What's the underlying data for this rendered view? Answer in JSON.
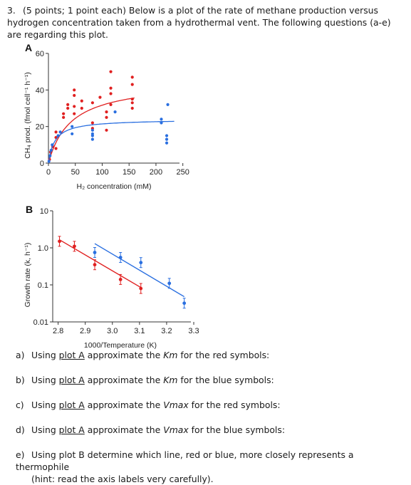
{
  "intro": {
    "number": "3.",
    "text": "(5 points; 1 point each) Below is a plot of the rate of methane production versus hydrogen concentration taken from a hydrothermal vent. The following questions (a-e) are regarding this plot."
  },
  "colors": {
    "red": "#e02020",
    "blue": "#2a6fe0",
    "axis": "#333333"
  },
  "chart_data": [
    {
      "panel": "A",
      "type": "scatter",
      "xlabel": "H₂ concentration (mM)",
      "ylabel": "CH₄ prod. (fmol cell⁻¹ h⁻¹)",
      "xlim": [
        0,
        265
      ],
      "ylim": [
        0,
        60
      ],
      "xticks": [
        0,
        50,
        100,
        150,
        200,
        250
      ],
      "yticks": [
        0,
        20,
        40,
        60
      ],
      "grid": false,
      "series": [
        {
          "color": "red",
          "points": [
            [
              2,
              2
            ],
            [
              4,
              6
            ],
            [
              8,
              9
            ],
            [
              14,
              8
            ],
            [
              14,
              14
            ],
            [
              14,
              17
            ],
            [
              28,
              25
            ],
            [
              28,
              27
            ],
            [
              36,
              30
            ],
            [
              36,
              32
            ],
            [
              48,
              27
            ],
            [
              48,
              31
            ],
            [
              48,
              37
            ],
            [
              48,
              40
            ],
            [
              62,
              34
            ],
            [
              62,
              30
            ],
            [
              82,
              33
            ],
            [
              82,
              19
            ],
            [
              82,
              22
            ],
            [
              96,
              36
            ],
            [
              108,
              28
            ],
            [
              108,
              25
            ],
            [
              108,
              18
            ],
            [
              116,
              32
            ],
            [
              116,
              38
            ],
            [
              116,
              41
            ],
            [
              116,
              50
            ],
            [
              156,
              30
            ],
            [
              156,
              33
            ],
            [
              156,
              35
            ],
            [
              156,
              43
            ],
            [
              156,
              47
            ]
          ],
          "fit": {
            "model": "michaelis-menten",
            "vmax": 45,
            "km": 42
          }
        },
        {
          "color": "blue",
          "points": [
            [
              1,
              1
            ],
            [
              3,
              4
            ],
            [
              5,
              7
            ],
            [
              7,
              10
            ],
            [
              18,
              15
            ],
            [
              22,
              17
            ],
            [
              44,
              20
            ],
            [
              44,
              16
            ],
            [
              82,
              15
            ],
            [
              82,
              13
            ],
            [
              82,
              16
            ],
            [
              82,
              18
            ],
            [
              124,
              28
            ],
            [
              210,
              22
            ],
            [
              210,
              24
            ],
            [
              220,
              11
            ],
            [
              220,
              13
            ],
            [
              220,
              15
            ],
            [
              222,
              32
            ]
          ],
          "fit": {
            "model": "michaelis-menten",
            "vmax": 24,
            "km": 12
          }
        }
      ]
    },
    {
      "panel": "B",
      "type": "scatter",
      "xlabel": "1000/Temperature (K)",
      "ylabel": "Growth rate (k, h⁻¹)",
      "xlim": [
        2.78,
        3.3
      ],
      "yscale": "log",
      "ylim": [
        0.01,
        10
      ],
      "xticks": [
        "2.8",
        "2.9",
        "3.0",
        "3.1",
        "3.2",
        "3.3"
      ],
      "yticks": [
        "0.01",
        "0.1",
        "1.0",
        "10"
      ],
      "grid": false,
      "series": [
        {
          "color": "red",
          "points": [
            [
              2.805,
              1.5
            ],
            [
              2.86,
              1.1
            ],
            [
              2.935,
              0.35
            ],
            [
              3.03,
              0.14
            ],
            [
              3.105,
              0.08
            ]
          ],
          "line": [
            [
              2.805,
              1.65
            ],
            [
              3.105,
              0.085
            ]
          ]
        },
        {
          "color": "blue",
          "points": [
            [
              2.935,
              0.75
            ],
            [
              3.03,
              0.55
            ],
            [
              3.105,
              0.4
            ],
            [
              3.21,
              0.11
            ],
            [
              3.265,
              0.032
            ]
          ],
          "line": [
            [
              2.935,
              1.3
            ],
            [
              3.265,
              0.048
            ]
          ]
        }
      ]
    }
  ],
  "questions": [
    {
      "letter": "a)",
      "pre": "Using ",
      "link": "plot A",
      "mid": " approximate the ",
      "term": "Km",
      "post": " for the red symbols:",
      "cont": ""
    },
    {
      "letter": "b)",
      "pre": "Using ",
      "link": "plot A",
      "mid": " approximate the ",
      "term": "Km",
      "post": " for the blue symbols:",
      "cont": ""
    },
    {
      "letter": "c)",
      "pre": "Using ",
      "link": "plot A",
      "mid": " approximate the ",
      "term": "Vmax",
      "post": " for the red symbols:",
      "cont": ""
    },
    {
      "letter": "d)",
      "pre": "Using ",
      "link": "plot A",
      "mid": " approximate the ",
      "term": "Vmax",
      "post": " for the blue symbols:",
      "cont": ""
    },
    {
      "letter": "e)",
      "pre": "Using plot B determine which line, red or blue, more closely represents a thermophile",
      "link": "",
      "mid": "",
      "term": "",
      "post": "",
      "cont": "(hint: read the axis labels very carefully)."
    }
  ]
}
